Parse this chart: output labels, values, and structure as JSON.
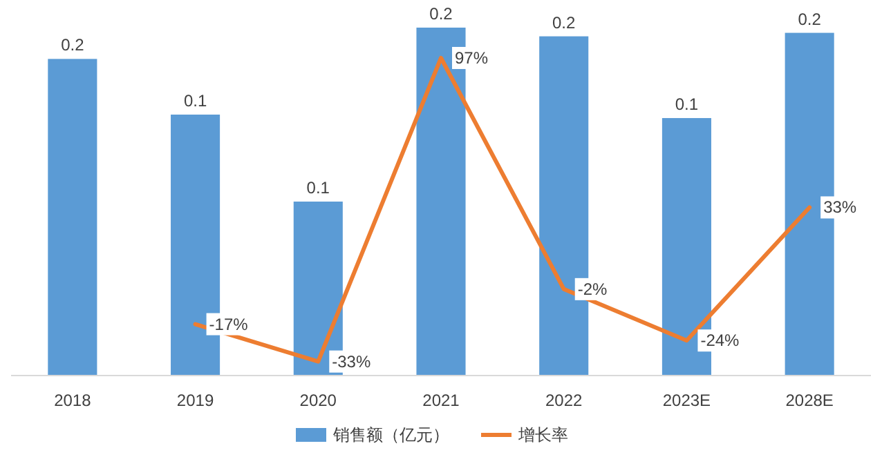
{
  "chart_data": {
    "type": "bar",
    "ylim": [
      0,
      0.2
    ],
    "categories": [
      "2018",
      "2019",
      "2020",
      "2021",
      "2022",
      "2023E",
      "2028E"
    ],
    "series": [
      {
        "name": "销售额（亿元）",
        "color": "#5b9bd5",
        "values": [
          0.182,
          0.15,
          0.1,
          0.2,
          0.195,
          0.148,
          0.197
        ],
        "value_labels": [
          "0.2",
          "0.1",
          "0.1",
          "0.2",
          "0.2",
          "0.1",
          "0.2"
        ]
      },
      {
        "name": "增长率",
        "type": "line",
        "axis": "y2",
        "color": "#ed7d31",
        "values": [
          null,
          -17,
          -33,
          97,
          -2,
          -24,
          33
        ],
        "value_labels": [
          null,
          "-17%",
          "-33%",
          "97%",
          "-2%",
          "-24%",
          "33%"
        ]
      }
    ],
    "y2lim": [
      -39,
      110
    ],
    "tick_labels": "x",
    "legend": "bottom",
    "marker": "none",
    "line_style": "solid"
  }
}
